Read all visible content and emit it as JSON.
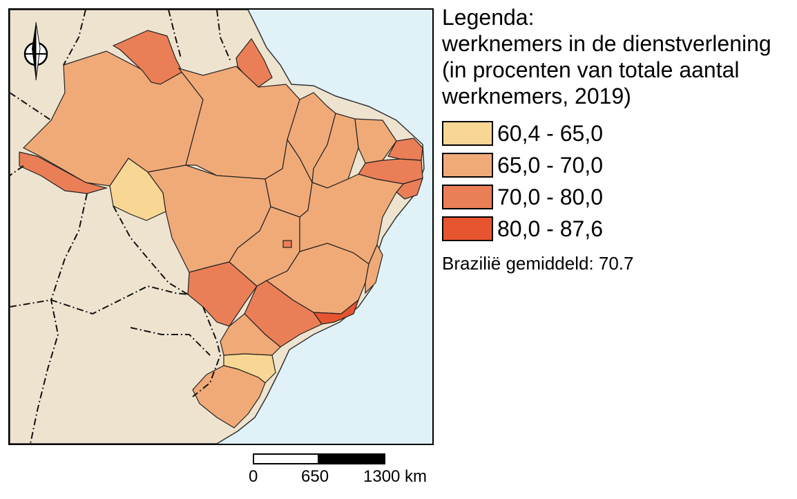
{
  "legend": {
    "title_lines": [
      "Legenda:",
      "werknemers in de dienstverlening",
      "(in procenten van totale aantal",
      "werknemers, 2019)"
    ],
    "classes": [
      {
        "label": "60,4 - 65,0",
        "color": "#f8d794"
      },
      {
        "label": "65,0 - 70,0",
        "color": "#f0aa78"
      },
      {
        "label": "70,0 - 80,0",
        "color": "#ea7e57"
      },
      {
        "label": "80,0 - 87,6",
        "color": "#e6552f"
      }
    ],
    "average": "Brazilië gemiddeld: 70.7"
  },
  "scale": {
    "labels": [
      "0",
      "650",
      "1300 km"
    ]
  },
  "colors": {
    "sea": "#e0f2f7",
    "land_outside": "#eee3cf",
    "border": "#000000"
  },
  "north_arrow": {
    "icon": "north-arrow-icon"
  }
}
